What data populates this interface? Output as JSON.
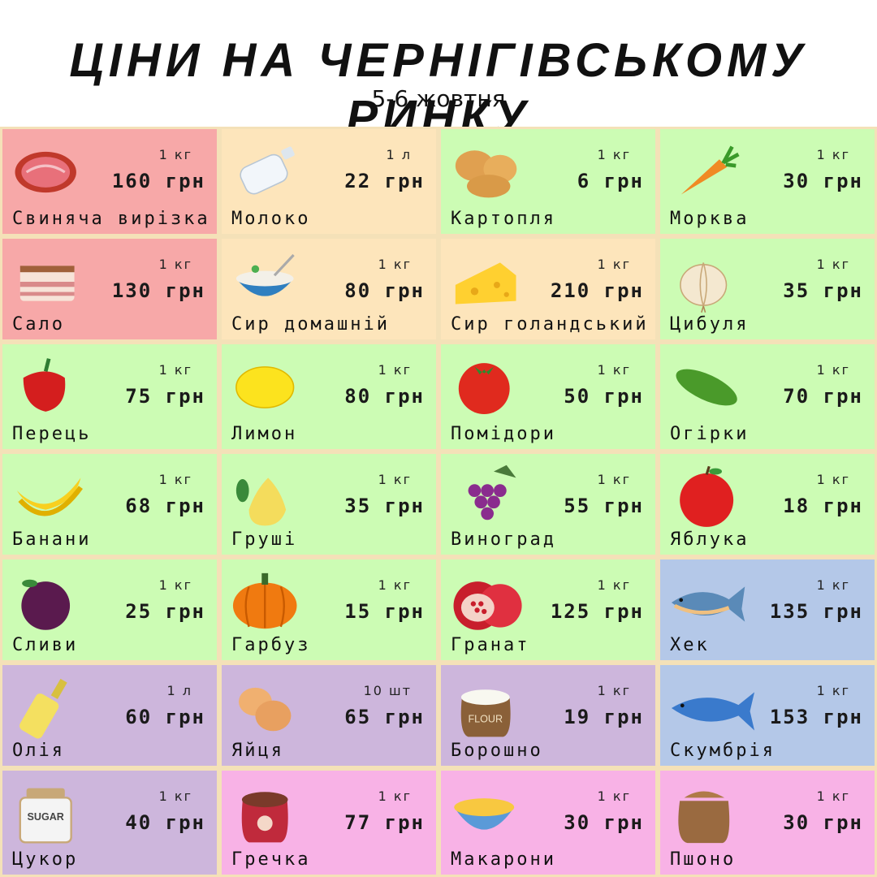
{
  "title": "ЦІНИ НА ЧЕРНІГІВСЬКОМУ РИНКУ",
  "subtitle": "5-6 жовтня",
  "colors": {
    "pink": "#f7a8a8",
    "peach": "#fde5bb",
    "green": "#ccfcb4",
    "blue": "#b4c8e8",
    "purple": "#cdb6dc",
    "magenta": "#f8b2e6"
  },
  "items": [
    {
      "name": "Свиняча вирізка",
      "unit": "1 кг",
      "price": "160 грн",
      "icon": "meat-icon",
      "color": "#f7a8a8"
    },
    {
      "name": "Молоко",
      "unit": "1 л",
      "price": "22 грн",
      "icon": "milk-bottle-icon",
      "color": "#fde5bb"
    },
    {
      "name": "Картопля",
      "unit": "1 кг",
      "price": "6 грн",
      "icon": "potato-icon",
      "color": "#ccfcb4"
    },
    {
      "name": "Морква",
      "unit": "1 кг",
      "price": "30 грн",
      "icon": "carrot-icon",
      "color": "#ccfcb4"
    },
    {
      "name": "Сало",
      "unit": "1 кг",
      "price": "130 грн",
      "icon": "lard-icon",
      "color": "#f7a8a8"
    },
    {
      "name": "Сир домашній",
      "unit": "1 кг",
      "price": "80 грн",
      "icon": "cottage-cheese-bowl-icon",
      "color": "#fde5bb"
    },
    {
      "name": "Сир голандський",
      "unit": "1 кг",
      "price": "210 грн",
      "icon": "cheese-icon",
      "color": "#fde5bb"
    },
    {
      "name": "Цибуля",
      "unit": "1 кг",
      "price": "35 грн",
      "icon": "onion-icon",
      "color": "#ccfcb4"
    },
    {
      "name": "Перець",
      "unit": "1 кг",
      "price": "75 грн",
      "icon": "pepper-icon",
      "color": "#ccfcb4"
    },
    {
      "name": "Лимон",
      "unit": "1 кг",
      "price": "80 грн",
      "icon": "lemon-icon",
      "color": "#ccfcb4"
    },
    {
      "name": "Помідори",
      "unit": "1 кг",
      "price": "50 грн",
      "icon": "tomato-icon",
      "color": "#ccfcb4"
    },
    {
      "name": "Огірки",
      "unit": "1 кг",
      "price": "70 грн",
      "icon": "cucumber-icon",
      "color": "#ccfcb4"
    },
    {
      "name": "Банани",
      "unit": "1 кг",
      "price": "68 грн",
      "icon": "banana-icon",
      "color": "#ccfcb4"
    },
    {
      "name": "Груші",
      "unit": "1 кг",
      "price": "35 грн",
      "icon": "pear-icon",
      "color": "#ccfcb4"
    },
    {
      "name": "Виноград",
      "unit": "1 кг",
      "price": "55 грн",
      "icon": "grapes-icon",
      "color": "#ccfcb4"
    },
    {
      "name": "Яблука",
      "unit": "1 кг",
      "price": "18 грн",
      "icon": "apple-icon",
      "color": "#ccfcb4"
    },
    {
      "name": "Сливи",
      "unit": "1 кг",
      "price": "25 грн",
      "icon": "plum-icon",
      "color": "#ccfcb4"
    },
    {
      "name": "Гарбуз",
      "unit": "1 кг",
      "price": "15 грн",
      "icon": "pumpkin-icon",
      "color": "#ccfcb4"
    },
    {
      "name": "Гранат",
      "unit": "1 кг",
      "price": "125 грн",
      "icon": "pomegranate-icon",
      "color": "#ccfcb4"
    },
    {
      "name": "Хек",
      "unit": "1 кг",
      "price": "135 грн",
      "icon": "hake-fish-icon",
      "color": "#b4c8e8"
    },
    {
      "name": "Олія",
      "unit": "1 л",
      "price": "60 грн",
      "icon": "oil-bottle-icon",
      "color": "#cdb6dc"
    },
    {
      "name": "Яйця",
      "unit": "10 шт",
      "price": "65 грн",
      "icon": "eggs-icon",
      "color": "#cdb6dc"
    },
    {
      "name": "Борошно",
      "unit": "1 кг",
      "price": "19 грн",
      "icon": "flour-sack-icon",
      "color": "#cdb6dc",
      "label": "FLOUR"
    },
    {
      "name": "Скумбрія",
      "unit": "1 кг",
      "price": "153 грн",
      "icon": "mackerel-fish-icon",
      "color": "#b4c8e8"
    },
    {
      "name": "Цукор",
      "unit": "1 кг",
      "price": "40 грн",
      "icon": "sugar-jar-icon",
      "color": "#cdb6dc",
      "label": "SUGAR"
    },
    {
      "name": "Гречка",
      "unit": "1 кг",
      "price": "77 грн",
      "icon": "buckwheat-sack-icon",
      "color": "#f8b2e6"
    },
    {
      "name": "Макарони",
      "unit": "1 кг",
      "price": "30 грн",
      "icon": "pasta-bowl-icon",
      "color": "#f8b2e6"
    },
    {
      "name": "Пшоно",
      "unit": "1 кг",
      "price": "30 грн",
      "icon": "millet-sack-icon",
      "color": "#f8b2e6"
    }
  ]
}
